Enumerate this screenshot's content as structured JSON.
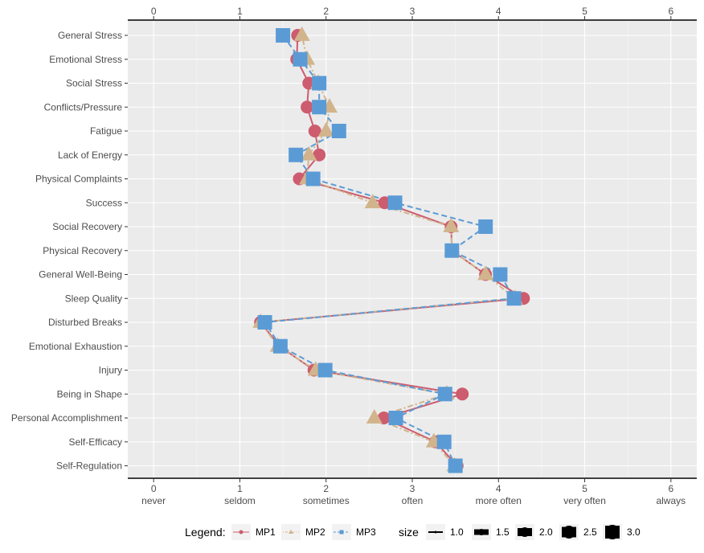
{
  "chart_data": {
    "type": "line",
    "orientation": "horizontal",
    "categories": [
      "General Stress",
      "Emotional Stress",
      "Social Stress",
      "Conflicts/Pressure",
      "Fatigue",
      "Lack of Energy",
      "Physical Complaints",
      "Success",
      "Social Recovery",
      "Physical Recovery",
      "General Well-Being",
      "Sleep Quality",
      "Disturbed Breaks",
      "Emotional Exhaustion",
      "Injury",
      "Being in Shape",
      "Personal Accomplishment",
      "Self-Efficacy",
      "Self-Regulation"
    ],
    "series": [
      {
        "name": "MP1",
        "marker": "circle",
        "line": "solid",
        "color": "#cd5c6e",
        "values": [
          1.67,
          1.66,
          1.8,
          1.78,
          1.87,
          1.92,
          1.69,
          2.68,
          3.45,
          3.46,
          3.85,
          4.29,
          1.24,
          1.46,
          1.86,
          3.58,
          2.67,
          3.27,
          3.52
        ]
      },
      {
        "name": "MP2",
        "marker": "triangle",
        "line": "dotdash",
        "color": "#d2b48c",
        "values": [
          1.72,
          1.78,
          1.91,
          2.04,
          2.0,
          1.8,
          1.78,
          2.54,
          3.45,
          3.46,
          3.85,
          4.19,
          1.24,
          1.44,
          1.88,
          3.4,
          2.56,
          3.25,
          3.49
        ]
      },
      {
        "name": "MP3",
        "marker": "square",
        "line": "dashed",
        "color": "#5b9bd5",
        "values": [
          1.5,
          1.7,
          1.92,
          1.92,
          2.15,
          1.65,
          1.85,
          2.8,
          3.85,
          3.46,
          4.02,
          4.18,
          1.29,
          1.47,
          1.99,
          3.38,
          2.81,
          3.37,
          3.5
        ]
      }
    ],
    "x_ticks": [
      0,
      1,
      2,
      3,
      4,
      5,
      6
    ],
    "x_tick_labels_bottom": [
      "0\nnever",
      "1\nseldom",
      "2\nsometimes",
      "3\noften",
      "4\nmore often",
      "5\nvery often",
      "6\nalways"
    ],
    "x_tick_labels_top": [
      "0",
      "1",
      "2",
      "3",
      "4",
      "5",
      "6"
    ],
    "xlim": [
      -0.3,
      6.3
    ],
    "grid": true,
    "legend": {
      "position": "bottom",
      "title": "Legend:",
      "size_title": "size",
      "size_values": [
        "1.0",
        "1.5",
        "2.0",
        "2.5",
        "3.0"
      ]
    }
  }
}
